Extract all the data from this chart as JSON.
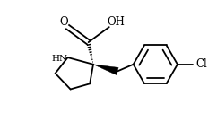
{
  "background": "#ffffff",
  "line_color": "#000000",
  "line_width": 1.3,
  "fig_width": 2.42,
  "fig_height": 1.36,
  "dpi": 100,
  "NH_label": "HN",
  "O_label": "O",
  "OH_label": "OH",
  "Cl_label": "Cl"
}
